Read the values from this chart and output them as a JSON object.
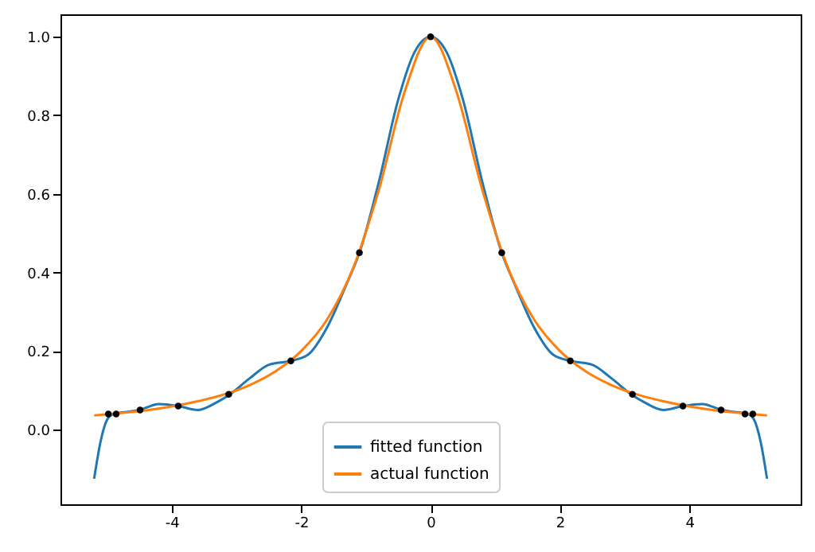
{
  "chart_data": {
    "type": "line",
    "legend": "bottom",
    "grid": false,
    "marker": "none",
    "line_style": "solid",
    "xlim": [
      -5.72,
      5.72
    ],
    "xticks": [
      -4,
      -2,
      0,
      2,
      4
    ],
    "ylim": [
      -0.19,
      1.057
    ],
    "yticks": [
      {
        "value": 0,
        "label": "0.0"
      },
      {
        "value": 0.2,
        "label": "0.2"
      },
      {
        "value": 0.4,
        "label": "0.4"
      },
      {
        "value": 0.6,
        "label": "0.6"
      },
      {
        "value": 0.8,
        "label": "0.8"
      },
      {
        "value": 1,
        "label": "1.0"
      }
    ],
    "series": [
      {
        "name": "fitted function",
        "color": "#1f77b4",
        "x": [
          -5.2,
          -5.1,
          -5.0,
          -4.9,
          -4.7,
          -4.5,
          -4.2,
          -3.9,
          -3.6,
          -3.3,
          -3.1,
          -2.8,
          -2.5,
          -2.16,
          -1.9,
          -1.6,
          -1.3,
          -1.1,
          -0.8,
          -0.5,
          -0.25,
          0,
          0.25,
          0.5,
          0.8,
          1.1,
          1.3,
          1.6,
          1.9,
          2.16,
          2.5,
          2.8,
          3.1,
          3.3,
          3.6,
          3.9,
          4.2,
          4.5,
          4.7,
          4.9,
          5.0,
          5.1,
          5.2
        ],
        "values": [
          -0.125,
          -0.03,
          0.025,
          0.04,
          0.045,
          0.05,
          0.065,
          0.06,
          0.05,
          0.07,
          0.09,
          0.13,
          0.165,
          0.175,
          0.19,
          0.26,
          0.37,
          0.45,
          0.63,
          0.84,
          0.96,
          1.0,
          0.96,
          0.84,
          0.63,
          0.45,
          0.37,
          0.26,
          0.19,
          0.175,
          0.165,
          0.13,
          0.09,
          0.07,
          0.05,
          0.06,
          0.065,
          0.05,
          0.045,
          0.04,
          0.025,
          -0.03,
          -0.125
        ]
      },
      {
        "name": "actual function",
        "color": "#ff7f0e",
        "x": [
          -5.2,
          -4.8,
          -4.4,
          -4.0,
          -3.6,
          -3.2,
          -2.8,
          -2.4,
          -2.0,
          -1.6,
          -1.2,
          -0.8,
          -0.4,
          0,
          0.4,
          0.8,
          1.2,
          1.6,
          2.0,
          2.4,
          2.8,
          3.2,
          3.6,
          4.0,
          4.4,
          4.8,
          5.2
        ],
        "values": [
          0.036,
          0.042,
          0.049,
          0.059,
          0.072,
          0.089,
          0.113,
          0.148,
          0.2,
          0.28,
          0.41,
          0.61,
          0.86,
          1.0,
          0.86,
          0.61,
          0.41,
          0.28,
          0.2,
          0.148,
          0.113,
          0.089,
          0.072,
          0.059,
          0.049,
          0.042,
          0.036
        ]
      },
      {
        "color": "#000000",
        "type": "scatter",
        "marker": "circle",
        "x": [
          -4.98,
          -4.86,
          -4.49,
          -3.9,
          -3.12,
          -2.16,
          -1.1,
          0,
          1.1,
          2.16,
          3.12,
          3.9,
          4.49,
          4.86,
          4.98
        ],
        "values": [
          0.04,
          0.04,
          0.05,
          0.06,
          0.09,
          0.175,
          0.45,
          1.0,
          0.45,
          0.175,
          0.09,
          0.06,
          0.05,
          0.04,
          0.04
        ]
      }
    ]
  }
}
